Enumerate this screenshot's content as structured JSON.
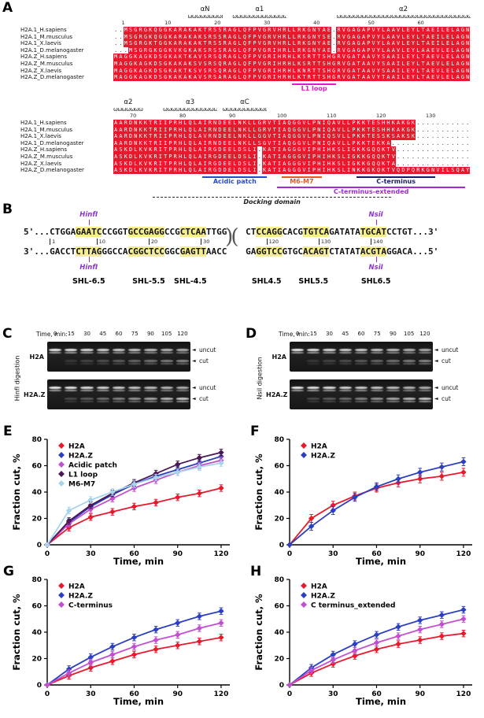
{
  "glyphs": {
    "left_arrow": "◄",
    "coil": "ω",
    "break_mark": ")("
  },
  "panelA": {
    "label": "A",
    "row_names": [
      "H2A.1_H.sapiens",
      "H2A.1_M.musculus",
      "H2A.1_X.laevis",
      "H2A.1_D.melanogaster",
      "H2A.Z_H.sapiens",
      "H2A.Z_M.musculus",
      "H2A.Z_X.laevis",
      "H2A.Z_D.melanogaster"
    ],
    "conserved_color": "#e8192c",
    "blocks": [
      {
        "ss": [
          {
            "label": "αN",
            "start": 15,
            "end": 21
          },
          {
            "label": "α1",
            "start": 24,
            "end": 34
          },
          {
            "label": "α2",
            "start": 45,
            "end": 71
          }
        ],
        "ruler": [
          {
            "n": "1",
            "col": 2
          },
          {
            "n": "10",
            "col": 11
          },
          {
            "n": "20",
            "col": 21
          },
          {
            "n": "30",
            "col": 31
          },
          {
            "n": "40",
            "col": 41
          },
          {
            "n": "50",
            "col": 52
          },
          {
            "n": "60",
            "col": 62
          }
        ],
        "rows": [
          "..MSGRGKQGGKARAKAKTRSSRAGLQFPVGRVHRLLRKGNYAE.RVGAGAPVYLAAVLEYLTAEILELAGN",
          "..MSGRGKQGGKARAKAKSRSSRAGLQFPVGRVHRLLRKGNYSE.RVGAGAPVYLAAVLEYLTAEILELAGN",
          "..MSGRGKTGGKARAKAKTRSSRAGLQFPVGRVHRLLRKGNYAE.RVGAGAPVYLAAVLEYLTAEILELAGN",
          "...MSGRGKGGKVKGKAKSRSSRAGLQFPVGRIHRLLRKGNYAE.RVGAGAPVYLAAVLEYLAAEVLELAGN",
          "MAGGKAGKDSGKAKTKAVSRSQRAGLQFPVGRIHRHLKSRTTSHGRVGATAAVYSAAILEYLTAEVLELAGN",
          "MAGGKAGKDSGKAKAKSVSRSQRAGLQFPVGRIHRHLKSRTTSHGRVGATAAVYSAAILEYLTAEVLELAGN",
          "MAGGKAGKDSGKAKTKSVSRSQRAGLQFPVGRIHRHLKNRTTSHGRVGATAAVYSAAILEYLTAEVLELAGN",
          "MAGGKAGKDSGKAKAKAVSRSARAGLQFPVGRIHRHLKTRTTSHGRVGATAAVYTAAILEYLTAEVLELAGN"
        ],
        "annotations": [
          [
            {
              "label": "L1 loop",
              "color": "#e618c8",
              "start": 36,
              "end": 44
            }
          ]
        ]
      },
      {
        "ss": [
          {
            "label": "α2",
            "start": 0,
            "end": 5
          },
          {
            "label": "α3",
            "start": 10,
            "end": 20
          },
          {
            "label": "αC",
            "start": 22,
            "end": 30
          }
        ],
        "ruler": [
          {
            "n": "70",
            "col": 4
          },
          {
            "n": "80",
            "col": 14
          },
          {
            "n": "90",
            "col": 24
          },
          {
            "n": "100",
            "col": 34
          },
          {
            "n": "110",
            "col": 44
          },
          {
            "n": "120",
            "col": 54
          },
          {
            "n": "130",
            "col": 64
          }
        ],
        "rows": [
          "AARDNKKTRIIPRHLQLAIRNDEELNKLLGRVTIAQGGVLPNIQAVLLPKKTESHHKAKGK...........",
          "AARDNKKTRIIPRHLQLAIRNDEELNKLLGRVTIAQGGVLPNIQAVLLPKKTESHHKAKGK...........",
          "AARDNKKTRIIPRHLQLAVRNDEELNKLLGGVTIAQGGVLPNIQSVLLPKKTESSKSAKSK...........",
          "AARDNKKTRIIPRHLQLAIRNDEELNKLLSGVTIAQGGVLPNIQAVLLPKKTEKKA................",
          "ASKDLKVKRITPRHLQLAIRGDEELDSLI.KATIAGGGVIPHIHKSLIGKKGQQKTV...............",
          "ASKDLKVKRITPRHLQLAIRGDEELDSLI.KATIAGGGVIPHIHKSLIGKKGQQKTV...............",
          "ASKDLKVKRITPRHLQLAIRGDEELDSLI.KATIAGGGVIPHIHKSLIGKKGQQKTA...............",
          "ASKDLKVKRITPRHLQLAIRGDDELDSLI.KATIAGGGVIPHIHKSLINKKGKQKTVQDPQRKGNVILSQAY"
        ],
        "annotations": [
          [
            {
              "label": "Acidic patch",
              "color": "#2749d0",
              "start": 18,
              "end": 30
            },
            {
              "label": "M6-M7",
              "color": "#e05a24",
              "start": 34,
              "end": 41
            },
            {
              "label": "C-terminus",
              "color": "#151c63",
              "start": 49,
              "end": 64
            }
          ],
          [
            {
              "label": "C-terminus-extended",
              "color": "#a02ad0",
              "start": 33,
              "end": 70
            }
          ],
          [
            {
              "label": "Docking domain",
              "color": "#222222",
              "start": 8,
              "end": 55,
              "dashed": true,
              "italic": true
            }
          ]
        ]
      }
    ]
  },
  "panelB": {
    "label": "B",
    "prefix_top": "5'...",
    "suffix_top": "...3'",
    "prefix_bottom": "3'...",
    "suffix_bottom": "...5'",
    "highlight_color": "#f6ee8c",
    "enzyme_color": "#8a35cc",
    "top_left": [
      {
        "t": "CTGGA"
      },
      {
        "t": "GAATC",
        "hl": true
      },
      {
        "t": "CCGGT"
      },
      {
        "t": "GCCGAGG",
        "hl": true
      },
      {
        "t": "CCG"
      },
      {
        "t": "CTCAA",
        "hl": true
      },
      {
        "t": "TTGG"
      }
    ],
    "top_right": [
      {
        "t": "CT"
      },
      {
        "t": "CCAGG",
        "hl": true
      },
      {
        "t": "CACG"
      },
      {
        "t": "TGTCA",
        "hl": true
      },
      {
        "t": "GATATA"
      },
      {
        "t": "TGCAT",
        "hl": true
      },
      {
        "t": "CCTGT"
      }
    ],
    "bottom_left": [
      {
        "t": "GACCT"
      },
      {
        "t": "CTTAG",
        "hl": true
      },
      {
        "t": "GGCCA"
      },
      {
        "t": "CGGCTCC",
        "hl": true
      },
      {
        "t": "GGC"
      },
      {
        "t": "GAGTT",
        "hl": true
      },
      {
        "t": "AACC"
      }
    ],
    "bottom_right": [
      {
        "t": "GA"
      },
      {
        "t": "GGTCC",
        "hl": true
      },
      {
        "t": "GTGC"
      },
      {
        "t": "ACAGT",
        "hl": true
      },
      {
        "t": "CTATAT"
      },
      {
        "t": "ACGTA",
        "hl": true
      },
      {
        "t": "GGACA"
      }
    ],
    "ruler_left": [
      {
        "n": "1",
        "col": 0
      },
      {
        "n": "10",
        "col": 9
      },
      {
        "n": "20",
        "col": 19
      },
      {
        "n": "30",
        "col": 29
      }
    ],
    "ruler_right": [
      {
        "n": "120",
        "col": 4
      },
      {
        "n": "130",
        "col": 14
      },
      {
        "n": "140",
        "col": 24
      }
    ],
    "enzymes": [
      {
        "label": "HinfI",
        "block": "left",
        "col": 7.5
      },
      {
        "label": "NsiI",
        "block": "right",
        "col": 25
      }
    ],
    "shl_left": [
      {
        "label": "SHL-6.5",
        "col": 7.5
      },
      {
        "label": "SHL-5.5",
        "col": 19
      },
      {
        "label": "SHL-4.5",
        "col": 27
      }
    ],
    "shl_right": [
      {
        "label": "SHL4.5",
        "col": 4
      },
      {
        "label": "SHL5.5",
        "col": 13
      },
      {
        "label": "SHL6.5",
        "col": 25
      }
    ]
  },
  "panelC": {
    "label": "C",
    "rotated_label": "HinfI digestion",
    "time_label": "Time, min:",
    "times": [
      "0",
      "15",
      "30",
      "45",
      "60",
      "75",
      "90",
      "105",
      "120"
    ],
    "rows": [
      "H2A",
      "H2A.Z"
    ],
    "band_labels": [
      "uncut",
      "cut"
    ]
  },
  "panelD": {
    "label": "D",
    "rotated_label": "NsiI digestion",
    "time_label": "Time, min:",
    "times": [
      "0",
      "15",
      "30",
      "45",
      "60",
      "75",
      "90",
      "105",
      "120"
    ],
    "rows": [
      "H2A",
      "H2A.Z"
    ],
    "band_labels": [
      "uncut",
      "cut"
    ]
  },
  "chart_data": [
    {
      "panel": "E",
      "type": "line",
      "x": [
        0,
        15,
        30,
        45,
        60,
        75,
        90,
        105,
        120
      ],
      "xlabel": "Time, min",
      "ylabel": "Fraction cut, %",
      "xlim": [
        0,
        126
      ],
      "ylim": [
        0,
        80
      ],
      "xticks": [
        0,
        30,
        60,
        90,
        120
      ],
      "yticks": [
        0,
        20,
        40,
        60,
        80
      ],
      "error": 2.5,
      "legend_position": "top-left",
      "grid": false,
      "series": [
        {
          "name": "H2A",
          "color": "#e8192c",
          "values": [
            0,
            13,
            21,
            25,
            29,
            32,
            36,
            39,
            43
          ]
        },
        {
          "name": "H2A.Z",
          "color": "#2b3fc0",
          "values": [
            0,
            17,
            29,
            38,
            46,
            52,
            57,
            62,
            67
          ]
        },
        {
          "name": "Acidic patch",
          "color": "#c24fd0",
          "values": [
            0,
            16,
            27,
            35,
            43,
            49,
            55,
            60,
            64
          ]
        },
        {
          "name": "L1 loop",
          "color": "#4b1855",
          "values": [
            0,
            18,
            30,
            39,
            47,
            54,
            61,
            66,
            70
          ]
        },
        {
          "name": "M6-M7",
          "color": "#a8d4ea",
          "values": [
            0,
            26,
            34,
            40,
            46,
            51,
            55,
            59,
            62
          ]
        }
      ]
    },
    {
      "panel": "F",
      "type": "line",
      "x": [
        0,
        15,
        30,
        45,
        60,
        75,
        90,
        105,
        120
      ],
      "xlabel": "Time, min",
      "ylabel": "Fraction cut, %",
      "xlim": [
        0,
        126
      ],
      "ylim": [
        0,
        80
      ],
      "xticks": [
        0,
        30,
        60,
        90,
        120
      ],
      "yticks": [
        0,
        20,
        40,
        60,
        80
      ],
      "error": 3,
      "legend_position": "top-left",
      "grid": false,
      "series": [
        {
          "name": "H2A",
          "color": "#e8192c",
          "values": [
            0,
            20,
            30,
            37,
            43,
            47,
            50,
            52,
            55
          ]
        },
        {
          "name": "H2A.Z",
          "color": "#2b3fc0",
          "values": [
            0,
            14,
            26,
            36,
            44,
            50,
            55,
            59,
            63
          ]
        }
      ]
    },
    {
      "panel": "G",
      "type": "line",
      "x": [
        0,
        15,
        30,
        45,
        60,
        75,
        90,
        105,
        120
      ],
      "xlabel": "Time, min",
      "ylabel": "Fraction cut, %",
      "xlim": [
        0,
        126
      ],
      "ylim": [
        0,
        80
      ],
      "xticks": [
        0,
        30,
        60,
        90,
        120
      ],
      "yticks": [
        0,
        20,
        40,
        60,
        80
      ],
      "error": 2.5,
      "legend_position": "top-left",
      "grid": false,
      "series": [
        {
          "name": "H2A",
          "color": "#e8192c",
          "values": [
            0,
            7,
            13,
            18,
            23,
            27,
            30,
            33,
            36
          ]
        },
        {
          "name": "H2A.Z",
          "color": "#2b3fc0",
          "values": [
            0,
            12,
            21,
            29,
            36,
            42,
            47,
            52,
            56
          ]
        },
        {
          "name": "C-terminus",
          "color": "#c24fd0",
          "values": [
            0,
            9,
            17,
            23,
            29,
            34,
            38,
            43,
            47
          ]
        }
      ]
    },
    {
      "panel": "H",
      "type": "line",
      "x": [
        0,
        15,
        30,
        45,
        60,
        75,
        90,
        105,
        120
      ],
      "xlabel": "Time, min",
      "ylabel": "Fraction cut, %",
      "xlim": [
        0,
        126
      ],
      "ylim": [
        0,
        80
      ],
      "xticks": [
        0,
        30,
        60,
        90,
        120
      ],
      "yticks": [
        0,
        20,
        40,
        60,
        80
      ],
      "error": 2.5,
      "legend_position": "top-left",
      "grid": false,
      "series": [
        {
          "name": "H2A",
          "color": "#e8192c",
          "values": [
            0,
            9,
            16,
            22,
            27,
            31,
            34,
            37,
            39
          ]
        },
        {
          "name": "H2A.Z",
          "color": "#2b3fc0",
          "values": [
            0,
            13,
            23,
            31,
            38,
            44,
            49,
            53,
            57
          ]
        },
        {
          "name": "C terminus_extended",
          "color": "#c24fd0",
          "values": [
            0,
            11,
            19,
            26,
            32,
            37,
            42,
            46,
            50
          ]
        }
      ]
    }
  ]
}
